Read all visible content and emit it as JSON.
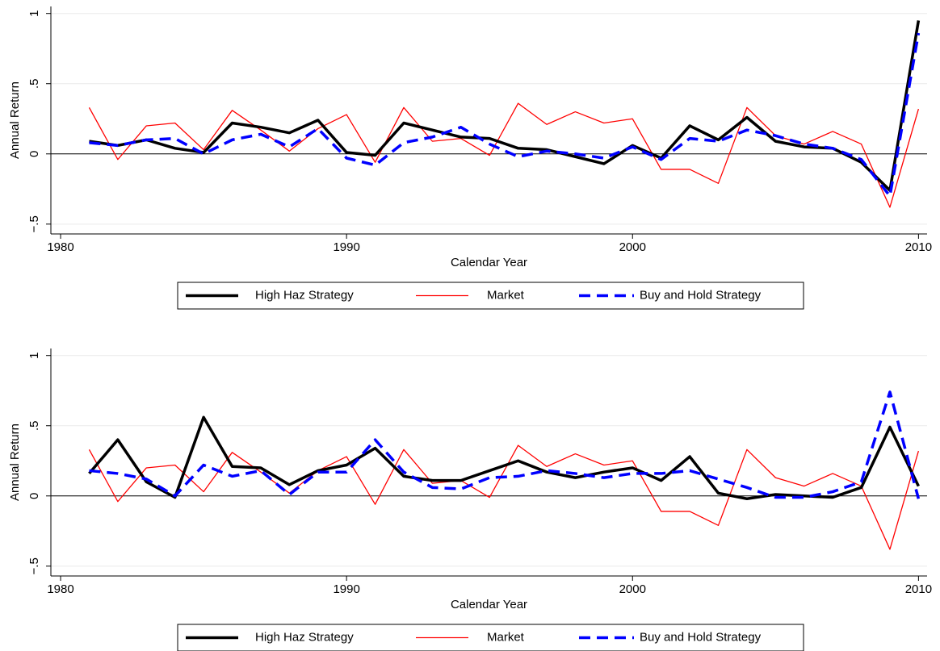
{
  "chart_data": [
    {
      "type": "line",
      "xlabel": "Calendar Year",
      "ylabel": "Annual Return",
      "x": [
        1981,
        1982,
        1983,
        1984,
        1985,
        1986,
        1987,
        1988,
        1989,
        1990,
        1991,
        1992,
        1993,
        1994,
        1995,
        1996,
        1997,
        1998,
        1999,
        2000,
        2001,
        2002,
        2003,
        2004,
        2005,
        2006,
        2007,
        2008,
        2009,
        2010
      ],
      "series": [
        {
          "name": "High Haz Strategy",
          "color": "#000000",
          "dash": "solid",
          "values": [
            0.09,
            0.06,
            0.1,
            0.04,
            0.01,
            0.22,
            0.19,
            0.15,
            0.24,
            0.01,
            -0.01,
            0.22,
            0.17,
            0.12,
            0.11,
            0.04,
            0.03,
            -0.02,
            -0.07,
            0.06,
            -0.03,
            0.2,
            0.1,
            0.26,
            0.09,
            0.05,
            0.04,
            -0.06,
            -0.26,
            0.95
          ]
        },
        {
          "name": "Market",
          "color": "#ff0000",
          "dash": "thin",
          "values": [
            0.33,
            -0.04,
            0.2,
            0.22,
            0.03,
            0.31,
            0.17,
            0.02,
            0.18,
            0.28,
            -0.06,
            0.33,
            0.09,
            0.11,
            -0.01,
            0.36,
            0.21,
            0.3,
            0.22,
            0.25,
            -0.11,
            -0.11,
            -0.21,
            0.33,
            0.13,
            0.07,
            0.16,
            0.07,
            -0.38,
            0.32
          ]
        },
        {
          "name": "Buy and Hold Strategy",
          "color": "#0000ff",
          "dash": "dashed",
          "values": [
            0.08,
            0.06,
            0.1,
            0.11,
            0.0,
            0.1,
            0.14,
            0.05,
            0.18,
            -0.03,
            -0.08,
            0.08,
            0.12,
            0.19,
            0.07,
            -0.02,
            0.02,
            0.0,
            -0.03,
            0.05,
            -0.04,
            0.11,
            0.09,
            0.17,
            0.13,
            0.07,
            0.04,
            -0.04,
            -0.3,
            0.86
          ]
        }
      ],
      "xlim": [
        1979.66,
        2010.3
      ],
      "ylim": [
        -0.57,
        1.05
      ],
      "xticks": [
        1980,
        1990,
        2000,
        2010
      ],
      "yticks": [
        {
          "value": -0.5,
          "label": "−.5"
        },
        0,
        {
          "value": 0.5,
          "label": ".5"
        },
        1
      ],
      "reference_line": 0,
      "grid": true,
      "legend": "bottom"
    },
    {
      "type": "line",
      "xlabel": "Calendar Year",
      "ylabel": "Annual Return",
      "x": [
        1981,
        1982,
        1983,
        1984,
        1985,
        1986,
        1987,
        1988,
        1989,
        1990,
        1991,
        1992,
        1993,
        1994,
        1995,
        1996,
        1997,
        1998,
        1999,
        2000,
        2001,
        2002,
        2003,
        2004,
        2005,
        2006,
        2007,
        2008,
        2009,
        2010
      ],
      "series": [
        {
          "name": "High Haz Strategy",
          "color": "#000000",
          "dash": "solid",
          "values": [
            0.16,
            0.4,
            0.1,
            -0.01,
            0.56,
            0.21,
            0.2,
            0.08,
            0.18,
            0.22,
            0.34,
            0.14,
            0.11,
            0.11,
            0.18,
            0.25,
            0.17,
            0.13,
            0.17,
            0.2,
            0.11,
            0.28,
            0.02,
            -0.02,
            0.01,
            0.0,
            -0.01,
            0.06,
            0.49,
            0.07
          ]
        },
        {
          "name": "Market",
          "color": "#ff0000",
          "dash": "thin",
          "values": [
            0.33,
            -0.04,
            0.2,
            0.22,
            0.03,
            0.31,
            0.17,
            0.02,
            0.18,
            0.28,
            -0.06,
            0.33,
            0.09,
            0.11,
            -0.01,
            0.36,
            0.21,
            0.3,
            0.22,
            0.25,
            -0.11,
            -0.11,
            -0.21,
            0.33,
            0.13,
            0.07,
            0.16,
            0.07,
            -0.38,
            0.32
          ]
        },
        {
          "name": "Buy and Hold Strategy",
          "color": "#0000ff",
          "dash": "dashed",
          "values": [
            0.18,
            0.16,
            0.12,
            0.0,
            0.22,
            0.14,
            0.18,
            0.01,
            0.17,
            0.17,
            0.4,
            0.17,
            0.06,
            0.05,
            0.13,
            0.14,
            0.18,
            0.16,
            0.13,
            0.16,
            0.16,
            0.18,
            0.12,
            0.06,
            -0.01,
            -0.01,
            0.03,
            0.1,
            0.74,
            -0.02
          ]
        }
      ],
      "xlim": [
        1979.66,
        2010.3
      ],
      "ylim": [
        -0.57,
        1.05
      ],
      "xticks": [
        1980,
        1990,
        2000,
        2010
      ],
      "yticks": [
        {
          "value": -0.5,
          "label": "−.5"
        },
        0,
        {
          "value": 0.5,
          "label": ".5"
        },
        1
      ],
      "reference_line": 0,
      "grid": true,
      "legend": "bottom"
    }
  ]
}
